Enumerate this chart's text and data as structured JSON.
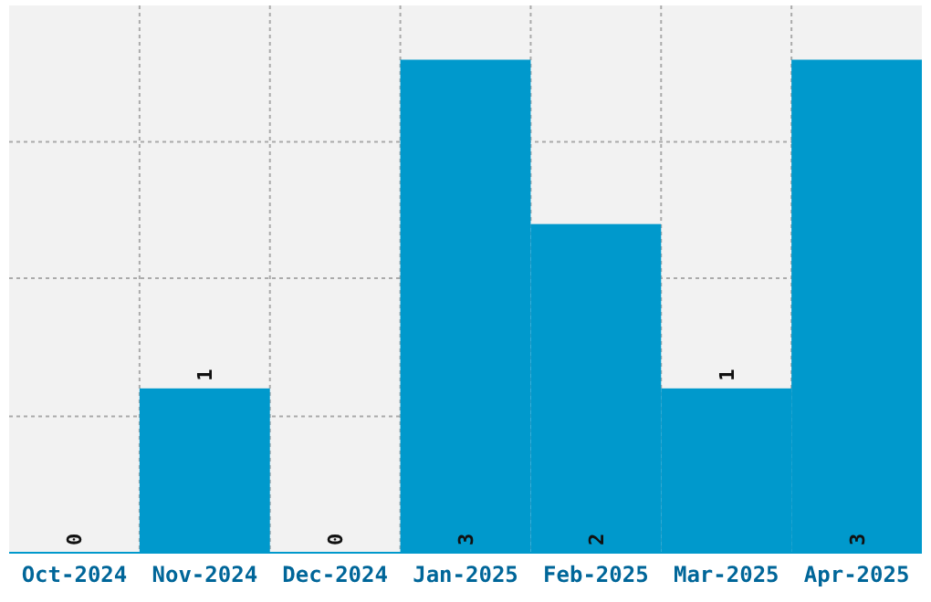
{
  "chart_data": {
    "type": "bar",
    "categories": [
      "Oct-2024",
      "Nov-2024",
      "Dec-2024",
      "Jan-2025",
      "Feb-2025",
      "Mar-2025",
      "Apr-2025"
    ],
    "values": [
      0,
      1,
      0,
      3,
      2,
      1,
      3
    ],
    "color": "#0099cc",
    "ylim": [
      0,
      3.33
    ],
    "yticks": [
      {
        "value": 0.83,
        "label": null
      },
      {
        "value": 1.67,
        "label": null
      },
      {
        "value": 2.5,
        "label": null
      }
    ],
    "grid": true,
    "data_labels": true,
    "tick_labels": "x"
  }
}
